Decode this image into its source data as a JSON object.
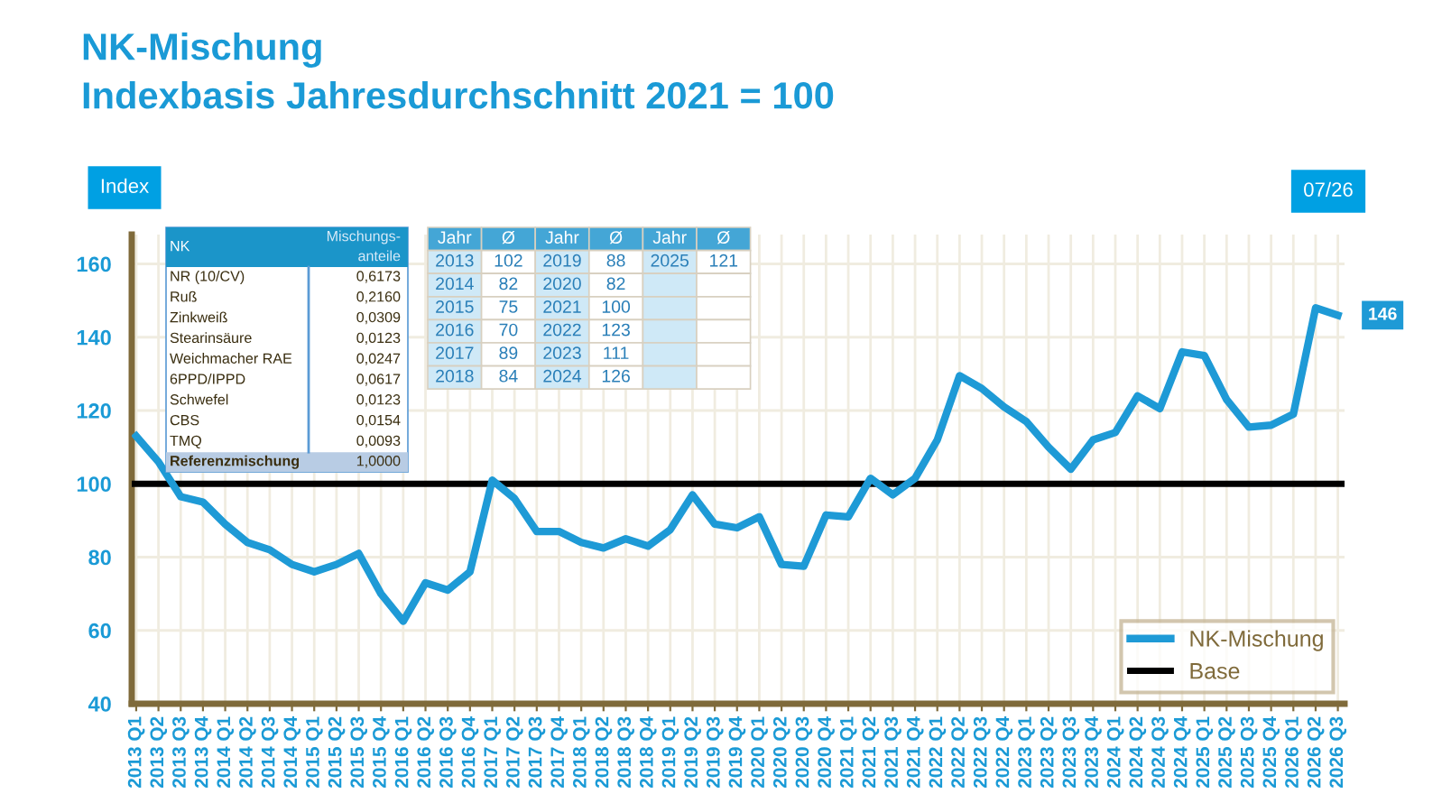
{
  "chart_data": {
    "type": "line",
    "title": "NK-Mischung",
    "subtitle": "Indexbasis Jahresdurchschnitt 2021 = 100",
    "ylabel": "Index",
    "categories": [
      "2013 Q1",
      "2013 Q2",
      "2013 Q3",
      "2013 Q4",
      "2014 Q1",
      "2014 Q2",
      "2014 Q3",
      "2014 Q4",
      "2015 Q1",
      "2015 Q2",
      "2015 Q3",
      "2015 Q4",
      "2016 Q1",
      "2016 Q2",
      "2016 Q3",
      "2016 Q4",
      "2017 Q1",
      "2017 Q2",
      "2017 Q3",
      "2017 Q4",
      "2018 Q1",
      "2018 Q2",
      "2018 Q3",
      "2018 Q4",
      "2019 Q1",
      "2019 Q2",
      "2019 Q3",
      "2019 Q4",
      "2020 Q1",
      "2020 Q2",
      "2020 Q3",
      "2020 Q4",
      "2021 Q1",
      "2021 Q2",
      "2021 Q3",
      "2021 Q4",
      "2022 Q1",
      "2022 Q2",
      "2022 Q3",
      "2022 Q4",
      "2023 Q1",
      "2023 Q2",
      "2023 Q3",
      "2023 Q4",
      "2024 Q1",
      "2024 Q2",
      "2024 Q3",
      "2024 Q4",
      "2025 Q1",
      "2025 Q2",
      "2025 Q3",
      "2025 Q4",
      "2026 Q1",
      "2026 Q2",
      "2026 Q3"
    ],
    "series": [
      {
        "name": "NK-Mischung",
        "color": "#1e9ad6",
        "values": [
          113,
          106,
          96.5,
          95,
          89,
          84,
          82,
          78,
          76,
          78,
          81,
          70,
          62.5,
          73,
          71,
          76,
          101,
          96,
          87,
          87,
          84,
          82.5,
          85,
          83,
          87.5,
          97,
          89,
          88,
          91,
          78,
          77.5,
          91.5,
          91,
          101.5,
          97,
          101.5,
          112,
          129.5,
          126,
          121,
          117,
          110,
          104,
          112,
          114,
          124,
          120.5,
          136,
          135,
          123,
          115.5,
          116,
          119,
          148,
          146
        ],
        "value_labels": [
          null,
          null,
          null,
          null,
          null,
          null,
          null,
          null,
          null,
          null,
          null,
          null,
          null,
          null,
          null,
          null,
          null,
          null,
          null,
          null,
          null,
          null,
          null,
          null,
          null,
          null,
          null,
          null,
          null,
          null,
          null,
          null,
          null,
          null,
          null,
          null,
          null,
          null,
          null,
          null,
          null,
          null,
          null,
          null,
          null,
          null,
          null,
          null,
          null,
          null,
          null,
          null,
          null,
          null,
          "146"
        ]
      }
    ],
    "ref_lines": [
      {
        "axis": "y",
        "value": 100,
        "label": "Base",
        "color": "#000000"
      }
    ],
    "ylim": [
      40,
      168
    ],
    "yticks": [
      40,
      60,
      80,
      100,
      120,
      140,
      160
    ],
    "grid": true,
    "legend": "bottom right",
    "marker": "none",
    "line_style": "solid",
    "annotations": [
      "07/26",
      "NK",
      "Mischungs-\nanteile",
      "NR (10/CV)",
      "0,6173",
      "Ruß",
      "0,2160",
      "Zinkweiß",
      "0,0309",
      "Stearinsäure",
      "0,0123",
      "Weichmacher RAE",
      "0,0247",
      "6PPD/IPPD",
      "0,0617",
      "Schwefel",
      "0,0123",
      "CBS",
      "0,0154",
      "TMQ",
      "0,0093",
      "Referenzmischung",
      "1,0000",
      "Jahr",
      "Ø",
      "Jahr",
      "Ø",
      "Jahr",
      "Ø",
      "2013",
      "102",
      "2019",
      "88",
      "2025",
      "121",
      "2014",
      "82",
      "2020",
      "82",
      "2015",
      "75",
      "2021",
      "100",
      "2016",
      "70",
      "2022",
      "123",
      "2017",
      "89",
      "2023",
      "111",
      "2018",
      "84",
      "2024",
      "126"
    ]
  }
}
